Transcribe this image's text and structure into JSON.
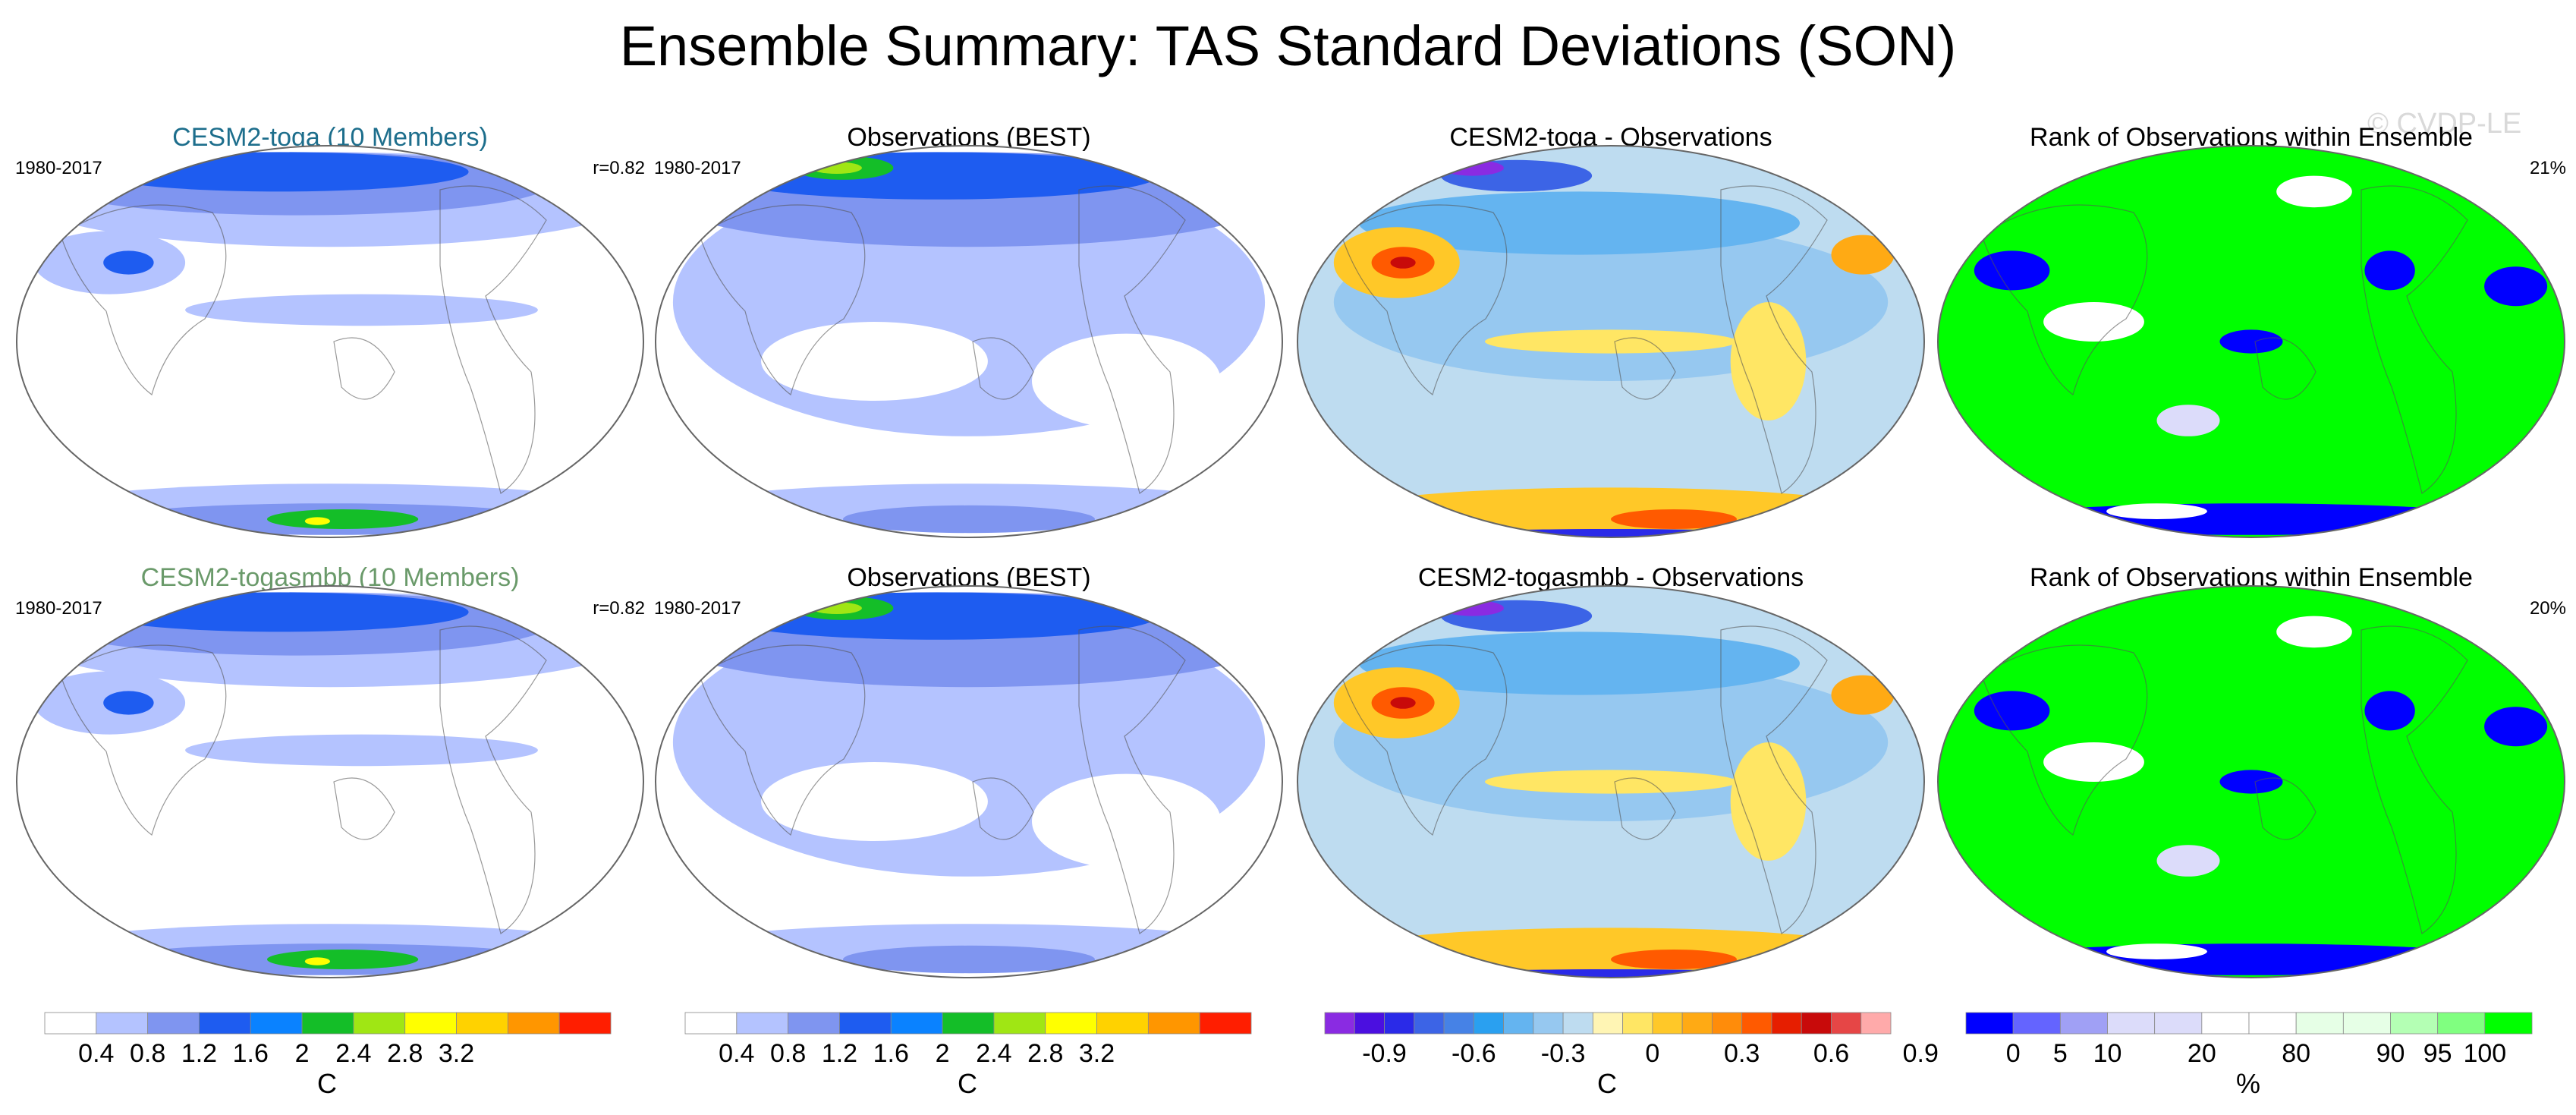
{
  "title": "Ensemble Summary: TAS Standard Deviations (SON)",
  "watermark": "© CVDP-LE",
  "colors": {
    "toga_title": "#1d6e8c",
    "togasmbb_title": "#6a9a6a"
  },
  "rows": [
    {
      "panels": [
        {
          "title": "CESM2-toga (10 Members)",
          "left_label": "1980-2017",
          "right_label": "r=0.82",
          "map_type": "model-std"
        },
        {
          "title": "Observations (BEST)",
          "left_label": "1980-2017",
          "right_label": "",
          "map_type": "obs-std"
        },
        {
          "title": "CESM2-toga - Observations",
          "left_label": "",
          "right_label": "",
          "map_type": "difference"
        },
        {
          "title": "Rank of Observations within Ensemble",
          "left_label": "",
          "right_label": "21%",
          "map_type": "rank"
        }
      ]
    },
    {
      "panels": [
        {
          "title": "CESM2-togasmbb (10 Members)",
          "left_label": "1980-2017",
          "right_label": "r=0.82",
          "map_type": "model-std"
        },
        {
          "title": "Observations (BEST)",
          "left_label": "1980-2017",
          "right_label": "",
          "map_type": "obs-std"
        },
        {
          "title": "CESM2-togasmbb - Observations",
          "left_label": "",
          "right_label": "",
          "map_type": "difference"
        },
        {
          "title": "Rank of Observations within Ensemble",
          "left_label": "",
          "right_label": "20%",
          "map_type": "rank"
        }
      ]
    }
  ],
  "colorbars": [
    {
      "unit": "C",
      "colors": [
        "#ffffff",
        "#b4c3ff",
        "#7f95f0",
        "#1e5cf0",
        "#0a82ff",
        "#14be28",
        "#a0e614",
        "#ffff00",
        "#ffd200",
        "#ff9600",
        "#ff1e00"
      ],
      "ticks": [
        "0.4",
        "0.8",
        "1.2",
        "1.6",
        "2",
        "2.4",
        "2.8",
        "3.2"
      ]
    },
    {
      "unit": "C",
      "colors": [
        "#ffffff",
        "#b4c3ff",
        "#7f95f0",
        "#1e5cf0",
        "#0a82ff",
        "#14be28",
        "#a0e614",
        "#ffff00",
        "#ffd200",
        "#ff9600",
        "#ff1e00"
      ],
      "ticks": [
        "0.4",
        "0.8",
        "1.2",
        "1.6",
        "2",
        "2.4",
        "2.8",
        "3.2"
      ]
    },
    {
      "unit": "C",
      "colors": [
        "#8a2be2",
        "#4b0fe0",
        "#2a2ae8",
        "#3c64e6",
        "#4682e6",
        "#2aa0f0",
        "#64b4f0",
        "#96c8f0",
        "#bedcf0",
        "#fff5b4",
        "#ffe664",
        "#ffc828",
        "#ffaa14",
        "#ff8c0a",
        "#ff5a00",
        "#e61e00",
        "#c80a0a",
        "#e64646",
        "#ffaaaa"
      ],
      "ticks": [
        "-0.9",
        "-0.6",
        "-0.3",
        "0",
        "0.3",
        "0.6",
        "0.9"
      ]
    },
    {
      "unit": "%",
      "colors": [
        "#0000ff",
        "#6464ff",
        "#a0a0f5",
        "#dcdcfa",
        "#dcdcfa",
        "#ffffff",
        "#ffffff",
        "#e6ffe6",
        "#e6ffe6",
        "#b4ffb4",
        "#80ff80",
        "#00ff00"
      ],
      "ticks": [
        "0",
        "5",
        "10",
        "20",
        "80",
        "90",
        "95",
        "100"
      ]
    }
  ]
}
